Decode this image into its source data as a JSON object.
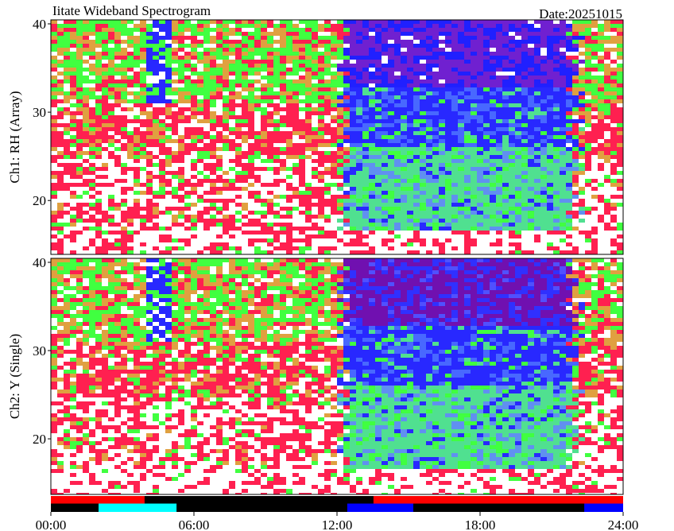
{
  "chart_data": [
    {
      "type": "heatmap",
      "title": "Iitate Wideband Spectrogram",
      "subtitle": "Date:20251015",
      "ylabel": "Ch1: RH (Array)",
      "xlim": [
        0,
        24
      ],
      "ylim": [
        13.9,
        40.45
      ],
      "yticks": [
        20,
        30,
        40
      ]
    },
    {
      "type": "heatmap",
      "ylabel": "Ch2: Y (Single)",
      "xlim": [
        0,
        24
      ],
      "ylim": [
        13.7,
        40.45
      ],
      "yticks": [
        20,
        30,
        40
      ],
      "xticks": [
        {
          "value": 0,
          "label": "00:00"
        },
        {
          "value": 6,
          "label": "06:00"
        },
        {
          "value": 12,
          "label": "12:00"
        },
        {
          "value": 18,
          "label": "18:00"
        },
        {
          "value": 24,
          "label": "24:00"
        }
      ],
      "status_rows": [
        [
          {
            "start": 0,
            "end": 3.93,
            "color": "#ff0000"
          },
          {
            "start": 13.53,
            "end": 24,
            "color": "#ff0000"
          }
        ],
        [
          {
            "start": 2,
            "end": 5.27,
            "color": "#00ffff"
          },
          {
            "start": 12.43,
            "end": 15.2,
            "color": "#0000ff"
          },
          {
            "start": 22.37,
            "end": 24,
            "color": "#0000ff"
          }
        ]
      ]
    }
  ]
}
